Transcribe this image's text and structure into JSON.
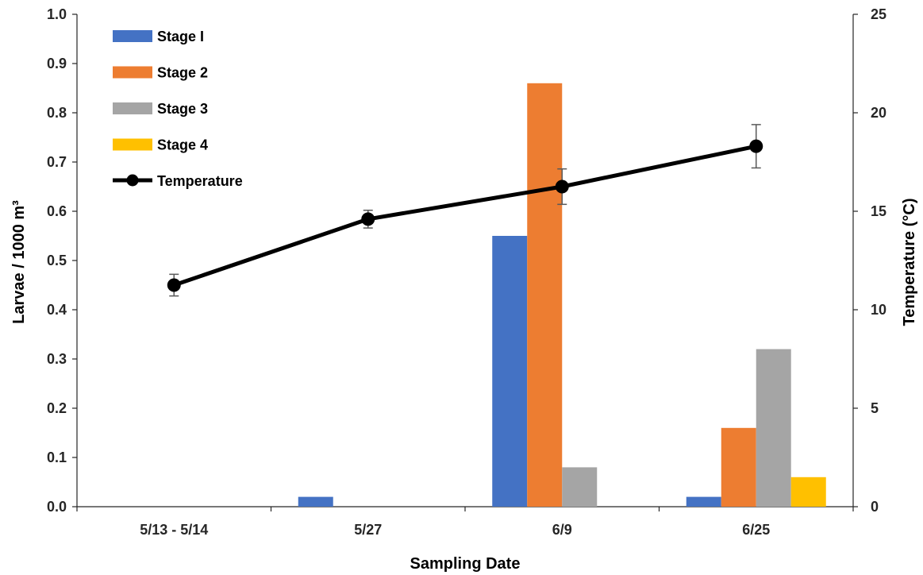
{
  "chart_data": {
    "type": "bar",
    "title": "",
    "categories": [
      "5/13 - 5/14",
      "5/27",
      "6/9",
      "6/25"
    ],
    "series": [
      {
        "name": "Stage I",
        "type": "bar",
        "axis": "left",
        "color": "#4472C4",
        "values": [
          0,
          0.02,
          0.55,
          0.02
        ]
      },
      {
        "name": "Stage 2",
        "type": "bar",
        "axis": "left",
        "color": "#ED7D31",
        "values": [
          0,
          0,
          0.86,
          0.16
        ]
      },
      {
        "name": "Stage 3",
        "type": "bar",
        "axis": "left",
        "color": "#A5A5A5",
        "values": [
          0,
          0,
          0.08,
          0.32
        ]
      },
      {
        "name": "Stage 4",
        "type": "bar",
        "axis": "left",
        "color": "#FFC000",
        "values": [
          0,
          0,
          0,
          0.06
        ]
      },
      {
        "name": "Temperature",
        "type": "line",
        "axis": "right",
        "color": "#000000",
        "values": [
          11.25,
          14.6,
          16.25,
          18.3
        ],
        "error": [
          0.55,
          0.45,
          0.9,
          1.1
        ]
      }
    ],
    "xlabel": "Sampling Date",
    "ylabel": "Larvae / 1000 m³",
    "y2label": "Temperature (°C)",
    "ylim": [
      0,
      1.0
    ],
    "y2lim": [
      0,
      25
    ],
    "yticks": [
      "0.0",
      "0.1",
      "0.2",
      "0.3",
      "0.4",
      "0.5",
      "0.6",
      "0.7",
      "0.8",
      "0.9",
      "1.0"
    ],
    "y2ticks": [
      "0",
      "5",
      "10",
      "15",
      "20",
      "25"
    ],
    "grid": false,
    "legend_position": "top-left"
  }
}
